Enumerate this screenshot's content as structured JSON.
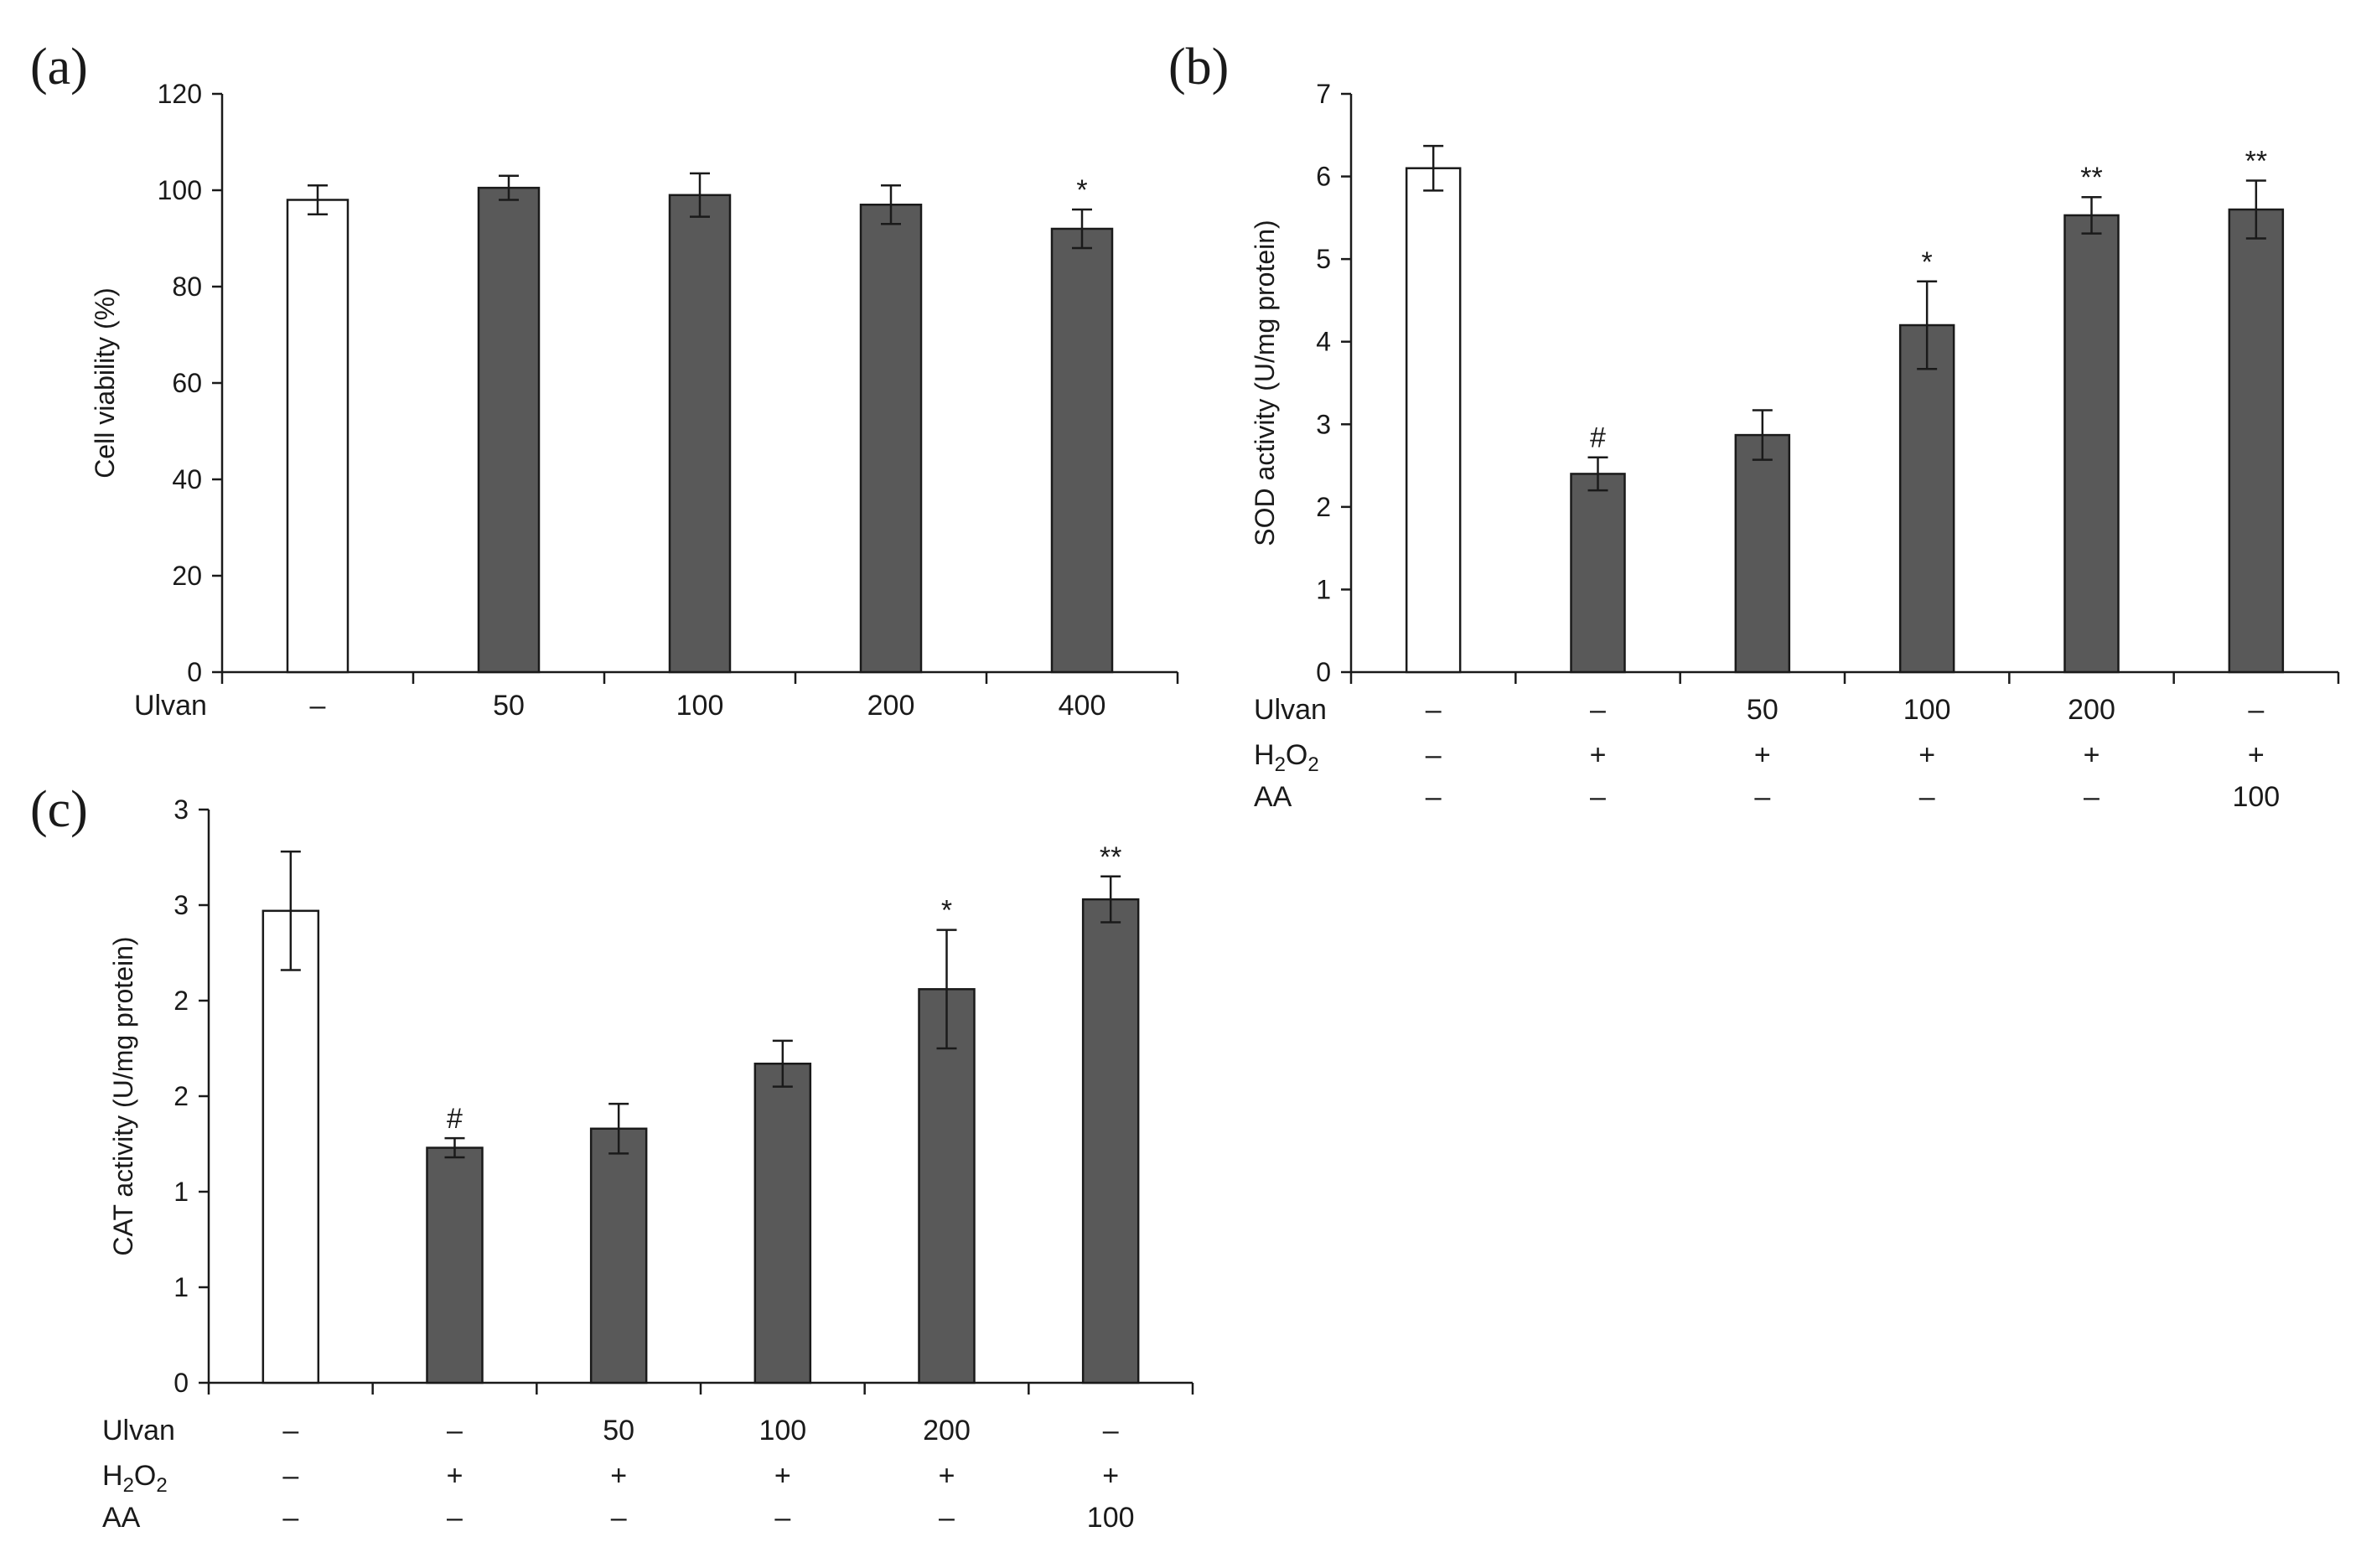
{
  "chart_data": [
    {
      "type": "bar",
      "panel_label": "(a)",
      "ylabel": "Cell viability (%)",
      "ylim": [
        0,
        120
      ],
      "y_ticks": [
        "0",
        "20",
        "40",
        "60",
        "80",
        "100",
        "120"
      ],
      "grid": false,
      "condition_rows": [
        {
          "name": "Ulvan",
          "values": [
            "–",
            "50",
            "100",
            "200",
            "400"
          ]
        }
      ],
      "values": [
        98,
        100.5,
        99,
        97,
        92
      ],
      "errors": [
        3,
        2.5,
        4.5,
        4,
        4
      ],
      "significance": [
        "",
        "",
        "",
        "",
        "*"
      ],
      "bar_fills": [
        "#ffffff",
        "#595959",
        "#595959",
        "#595959",
        "#595959"
      ]
    },
    {
      "type": "bar",
      "panel_label": "(b)",
      "ylabel": "SOD activity (U/mg protein)",
      "ylim": [
        0,
        7
      ],
      "y_ticks": [
        "0",
        "1",
        "2",
        "3",
        "4",
        "5",
        "6",
        "7"
      ],
      "grid": false,
      "condition_rows": [
        {
          "name": "Ulvan",
          "values": [
            "–",
            "–",
            "50",
            "100",
            "200",
            "–"
          ]
        },
        {
          "name": "H2O2",
          "values": [
            "–",
            "+",
            "+",
            "+",
            "+",
            "+"
          ]
        },
        {
          "name": "AA",
          "values": [
            "–",
            "–",
            "–",
            "–",
            "–",
            "100"
          ]
        }
      ],
      "values": [
        6.1,
        2.4,
        2.87,
        4.2,
        5.53,
        5.6
      ],
      "errors": [
        0.27,
        0.2,
        0.3,
        0.53,
        0.22,
        0.35
      ],
      "significance": [
        "",
        "#",
        "",
        "*",
        "**",
        "**"
      ],
      "bar_fills": [
        "#ffffff",
        "#595959",
        "#595959",
        "#595959",
        "#595959",
        "#595959"
      ]
    },
    {
      "type": "bar",
      "panel_label": "(c)",
      "ylabel": "CAT activity (U/mg protein)",
      "ylim": [
        0,
        3
      ],
      "y_ticks": [
        "0",
        "1",
        "1",
        "2",
        "2",
        "3",
        "3"
      ],
      "grid": false,
      "condition_rows": [
        {
          "name": "Ulvan",
          "values": [
            "–",
            "–",
            "50",
            "100",
            "200",
            "–"
          ]
        },
        {
          "name": "H2O2",
          "values": [
            "–",
            "+",
            "+",
            "+",
            "+",
            "+"
          ]
        },
        {
          "name": "AA",
          "values": [
            "–",
            "–",
            "–",
            "–",
            "–",
            "100"
          ]
        }
      ],
      "values": [
        2.47,
        1.23,
        1.33,
        1.67,
        2.06,
        2.53
      ],
      "errors": [
        0.31,
        0.05,
        0.13,
        0.12,
        0.31,
        0.12
      ],
      "significance": [
        "",
        "#",
        "",
        "",
        "*",
        "**"
      ],
      "bar_fills": [
        "#ffffff",
        "#595959",
        "#595959",
        "#595959",
        "#595959",
        "#595959"
      ]
    }
  ]
}
